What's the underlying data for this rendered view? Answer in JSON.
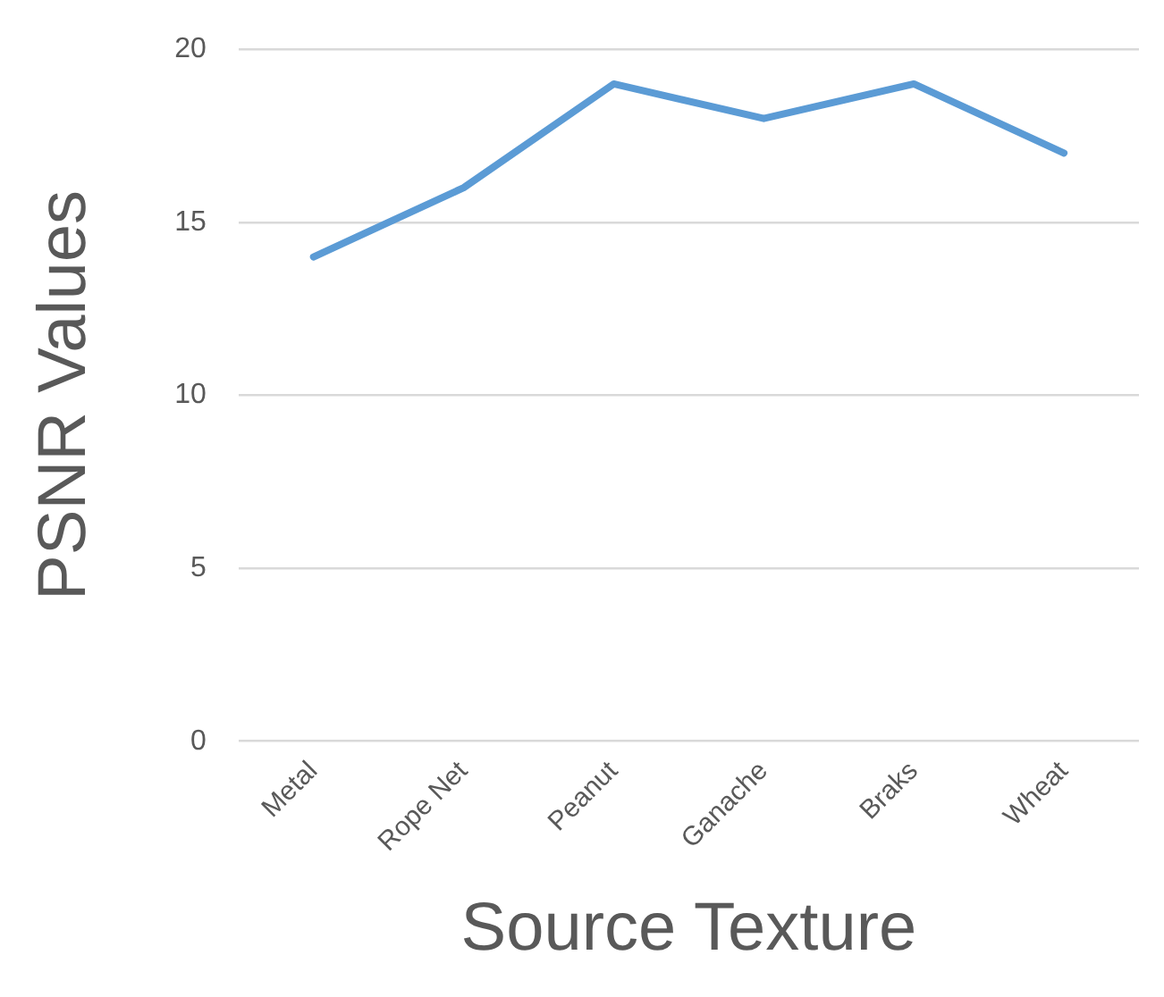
{
  "chart_data": {
    "type": "line",
    "xlabel": "Source Texture",
    "ylabel": "PSNR Values",
    "categories": [
      "Metal",
      "Rope Net",
      "Peanut",
      "Ganache",
      "Braks",
      "Wheat"
    ],
    "series": [
      {
        "color": "#5b9bd5",
        "values": [
          14,
          16,
          19,
          18,
          19,
          17
        ]
      }
    ],
    "ylim": [
      0,
      20
    ],
    "yticks": [
      0,
      5,
      10,
      15,
      20
    ],
    "grid": "y",
    "legend": false,
    "marker": "none"
  }
}
